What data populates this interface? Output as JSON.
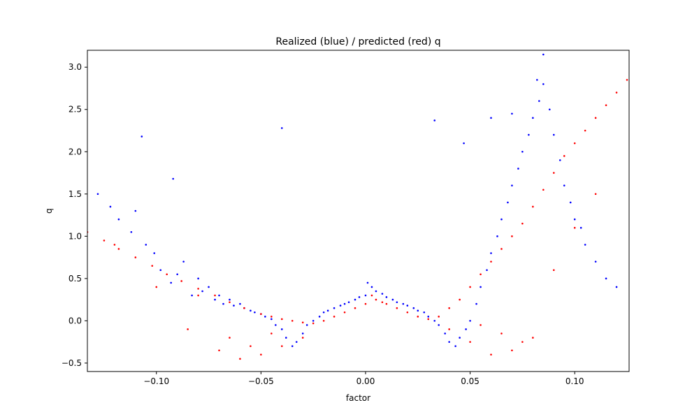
{
  "chart_data": {
    "type": "scatter",
    "title": "Realized (blue) / predicted (red) q",
    "xlabel": "factor",
    "ylabel": "q",
    "xlim": [
      -0.133,
      0.126
    ],
    "ylim": [
      -0.6,
      3.2
    ],
    "xticks": [
      -0.1,
      -0.05,
      0.0,
      0.05,
      0.1
    ],
    "xtick_labels": [
      "−0.10",
      "−0.05",
      "0.00",
      "0.05",
      "0.10"
    ],
    "yticks": [
      -0.5,
      0.0,
      0.5,
      1.0,
      1.5,
      2.0,
      2.5,
      3.0
    ],
    "ytick_labels": [
      "−0.5",
      "0.0",
      "0.5",
      "1.0",
      "1.5",
      "2.0",
      "2.5",
      "3.0"
    ],
    "grid": false,
    "series": [
      {
        "color": "#0000ff",
        "x": [
          -0.128,
          -0.122,
          -0.118,
          -0.112,
          -0.105,
          -0.101,
          -0.098,
          -0.093,
          -0.09,
          -0.087,
          -0.083,
          -0.08,
          -0.078,
          -0.075,
          -0.072,
          -0.07,
          -0.068,
          -0.065,
          -0.063,
          -0.06,
          -0.058,
          -0.055,
          -0.053,
          -0.05,
          -0.048,
          -0.045,
          -0.043,
          -0.04,
          -0.038,
          -0.035,
          -0.033,
          -0.03,
          -0.028,
          -0.025,
          -0.022,
          -0.02,
          -0.018,
          -0.015,
          -0.012,
          -0.01,
          -0.008,
          -0.005,
          -0.003,
          0.0,
          0.001,
          0.003,
          0.005,
          0.008,
          0.01,
          0.013,
          0.015,
          0.018,
          0.02,
          0.023,
          0.025,
          0.028,
          0.03,
          0.033,
          0.035,
          0.038,
          0.04,
          0.043,
          0.045,
          0.048,
          0.05,
          0.053,
          0.055,
          0.058,
          0.06,
          0.063,
          0.065,
          0.068,
          0.07,
          0.073,
          0.075,
          0.078,
          0.08,
          0.083,
          0.085,
          0.088,
          0.09,
          0.093,
          0.095,
          0.098,
          0.1,
          0.103,
          0.105,
          0.11,
          0.115,
          0.12,
          -0.107,
          -0.092,
          -0.04,
          0.033,
          0.047,
          0.085,
          0.082,
          0.06,
          0.07,
          -0.11
        ],
        "y": [
          1.5,
          1.35,
          1.2,
          1.05,
          0.9,
          0.8,
          0.6,
          0.45,
          0.55,
          0.7,
          0.3,
          0.5,
          0.35,
          0.4,
          0.25,
          0.3,
          0.2,
          0.25,
          0.18,
          0.2,
          0.15,
          0.12,
          0.1,
          0.08,
          0.05,
          0.02,
          -0.05,
          -0.1,
          -0.2,
          -0.3,
          -0.25,
          -0.15,
          -0.05,
          0.0,
          0.05,
          0.1,
          0.12,
          0.15,
          0.18,
          0.2,
          0.22,
          0.25,
          0.28,
          0.3,
          0.45,
          0.4,
          0.35,
          0.32,
          0.28,
          0.25,
          0.22,
          0.2,
          0.18,
          0.15,
          0.12,
          0.1,
          0.05,
          0.0,
          -0.05,
          -0.15,
          -0.25,
          -0.3,
          -0.2,
          -0.1,
          0.0,
          0.2,
          0.4,
          0.6,
          0.8,
          1.0,
          1.2,
          1.4,
          1.6,
          1.8,
          2.0,
          2.2,
          2.4,
          2.6,
          2.8,
          2.5,
          2.2,
          1.9,
          1.6,
          1.4,
          1.2,
          1.1,
          0.9,
          0.7,
          0.5,
          0.4,
          2.18,
          1.68,
          2.28,
          2.37,
          2.1,
          3.15,
          2.85,
          2.4,
          2.45,
          1.3
        ]
      },
      {
        "color": "#ff0000",
        "x": [
          -0.133,
          -0.125,
          -0.118,
          -0.11,
          -0.102,
          -0.095,
          -0.088,
          -0.08,
          -0.072,
          -0.065,
          -0.058,
          -0.05,
          -0.045,
          -0.04,
          -0.035,
          -0.03,
          -0.025,
          -0.02,
          -0.015,
          -0.01,
          -0.005,
          0.0,
          0.003,
          0.005,
          0.008,
          0.01,
          0.015,
          0.02,
          0.025,
          0.03,
          0.035,
          0.04,
          0.045,
          0.05,
          0.055,
          0.06,
          0.065,
          0.07,
          0.075,
          0.08,
          0.085,
          0.09,
          0.095,
          0.1,
          0.105,
          0.11,
          0.115,
          0.12,
          0.125,
          -0.12,
          -0.1,
          -0.085,
          -0.07,
          -0.06,
          -0.05,
          -0.04,
          -0.03,
          0.04,
          0.05,
          0.06,
          0.07,
          0.08,
          0.09,
          0.1,
          0.11,
          -0.08,
          -0.065,
          -0.055,
          -0.045,
          0.055,
          0.065,
          0.075
        ],
        "y": [
          1.05,
          0.95,
          0.85,
          0.75,
          0.65,
          0.55,
          0.47,
          0.38,
          0.3,
          0.22,
          0.15,
          0.08,
          0.05,
          0.02,
          0.0,
          -0.02,
          -0.03,
          0.0,
          0.05,
          0.1,
          0.15,
          0.2,
          0.3,
          0.25,
          0.22,
          0.2,
          0.15,
          0.1,
          0.05,
          0.02,
          0.05,
          0.15,
          0.25,
          0.4,
          0.55,
          0.7,
          0.85,
          1.0,
          1.15,
          1.35,
          1.55,
          1.75,
          1.95,
          2.1,
          2.25,
          2.4,
          2.55,
          2.7,
          2.85,
          0.9,
          0.4,
          -0.1,
          -0.35,
          -0.45,
          -0.4,
          -0.3,
          -0.2,
          -0.1,
          -0.25,
          -0.4,
          -0.35,
          -0.2,
          0.6,
          1.1,
          1.5,
          0.3,
          -0.2,
          -0.3,
          -0.15,
          -0.05,
          -0.15,
          -0.25
        ]
      }
    ]
  }
}
